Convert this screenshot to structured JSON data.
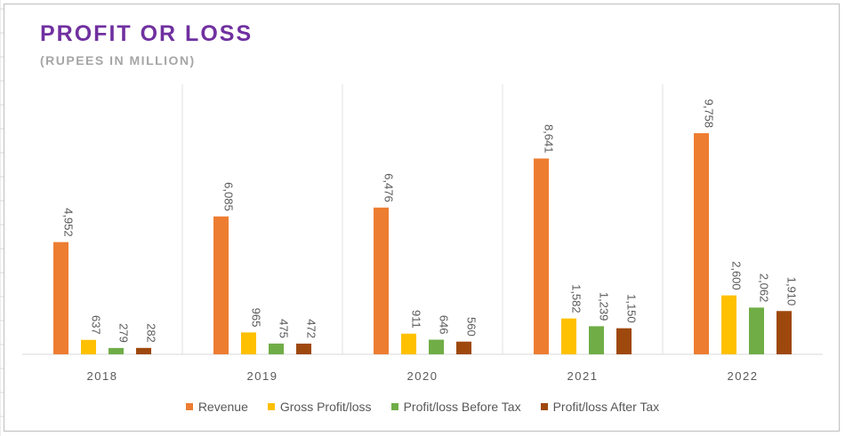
{
  "title": "PROFIT OR LOSS",
  "subtitle": "(RUPEES IN MILLION)",
  "colors": {
    "revenue": "#ed7d31",
    "gross": "#ffc000",
    "before_tax": "#70ad47",
    "after_tax": "#9e480e"
  },
  "chart_data": {
    "type": "bar",
    "categories": [
      "2018",
      "2019",
      "2020",
      "2021",
      "2022"
    ],
    "series": [
      {
        "name": "Revenue",
        "values": [
          4952,
          6085,
          6476,
          8641,
          9758
        ],
        "labels": [
          "4,952",
          "6,085",
          "6,476",
          "8,641",
          "9,758"
        ]
      },
      {
        "name": "Gross Profit/loss",
        "values": [
          637,
          965,
          911,
          1582,
          2600
        ],
        "labels": [
          "637",
          "965",
          "911",
          "1,582",
          "2,600"
        ]
      },
      {
        "name": "Profit/loss Before Tax",
        "values": [
          279,
          475,
          646,
          1239,
          2062
        ],
        "labels": [
          "279",
          "475",
          "646",
          "1,239",
          "2,062"
        ]
      },
      {
        "name": "Profit/loss After Tax",
        "values": [
          282,
          472,
          560,
          1150,
          1910
        ],
        "labels": [
          "282",
          "472",
          "560",
          "1,150",
          "1,910"
        ]
      }
    ],
    "legend_position": "bottom",
    "grid": false
  }
}
